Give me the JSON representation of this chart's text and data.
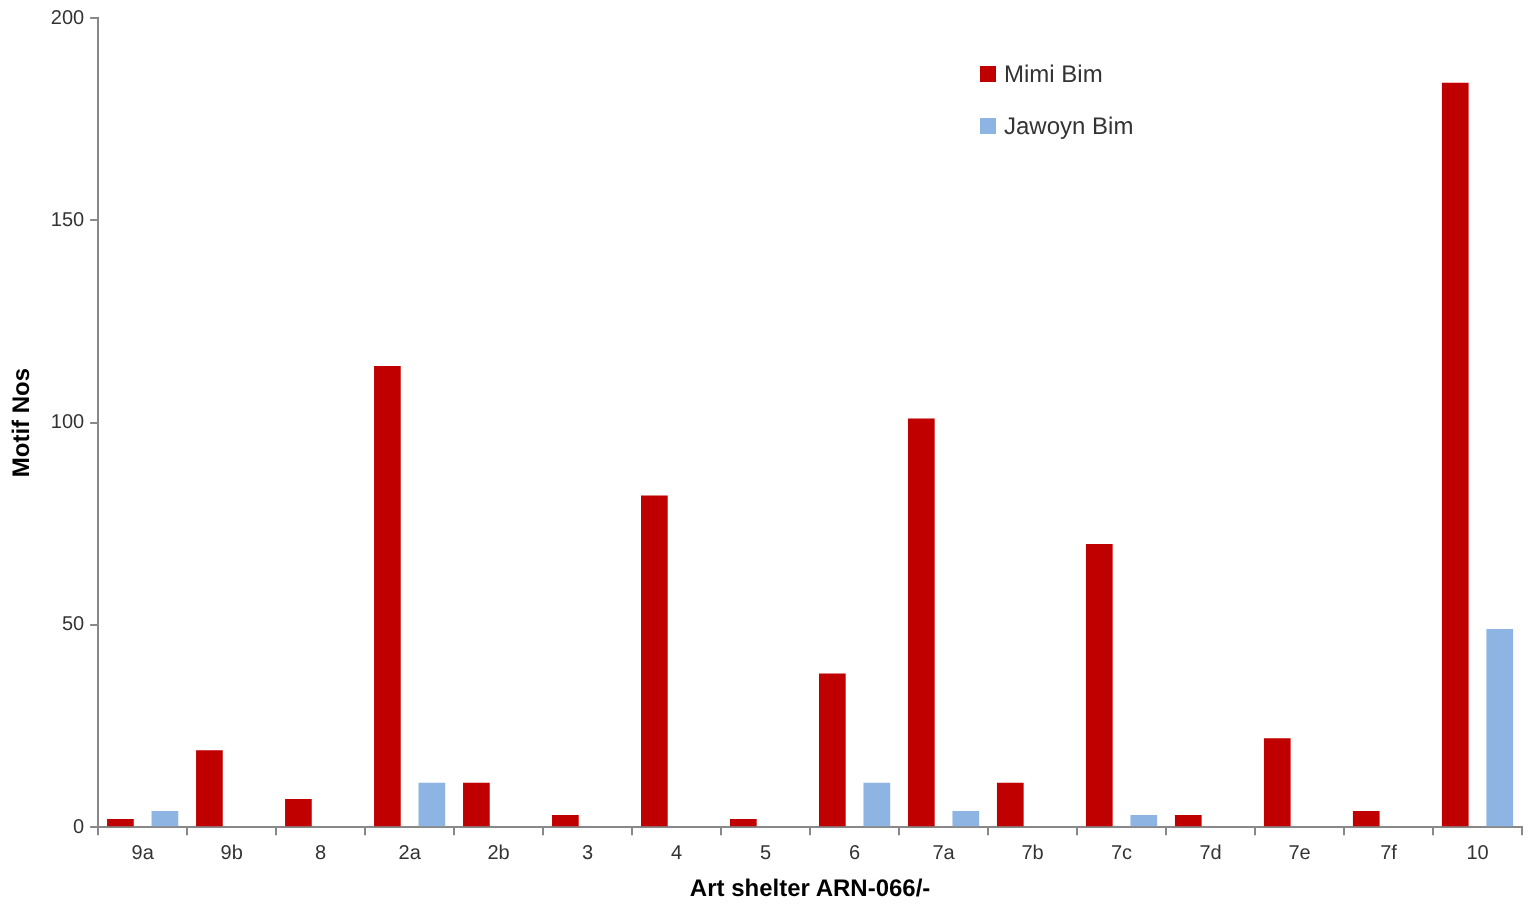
{
  "chart_data": {
    "type": "bar",
    "xlabel": "Art shelter ARN-066/-",
    "ylabel": "Motif Nos",
    "categories": [
      "9a",
      "9b",
      "8",
      "2a",
      "2b",
      "3",
      "4",
      "5",
      "6",
      "7a",
      "7b",
      "7c",
      "7d",
      "7e",
      "7f",
      "10"
    ],
    "series": [
      {
        "name": "Mimi Bim",
        "color": "#c00000",
        "values": [
          2,
          19,
          7,
          114,
          11,
          3,
          82,
          2,
          38,
          101,
          11,
          70,
          3,
          22,
          4,
          184
        ]
      },
      {
        "name": "Jawoyn Bim",
        "color": "#8db4e2",
        "values": [
          4,
          0,
          0,
          11,
          0,
          0,
          0,
          0,
          11,
          4,
          0,
          3,
          0,
          0,
          0,
          49
        ]
      }
    ],
    "ylim": [
      0,
      200
    ],
    "yticks": [
      0,
      50,
      100,
      150,
      200
    ],
    "grid": false,
    "legend": "top right"
  }
}
